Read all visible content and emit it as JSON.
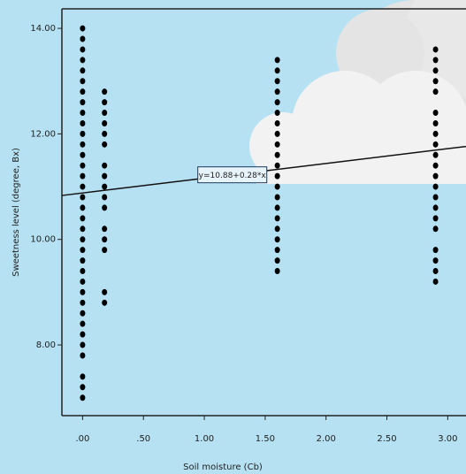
{
  "chart_data": {
    "type": "scatter",
    "x_label": "Soil moisture (Cb)",
    "y_label": "Sweetness level (degree, Bx)",
    "x": [
      0,
      0,
      0,
      0,
      0,
      0,
      0,
      0,
      0,
      0,
      0,
      0,
      0,
      0,
      0,
      0,
      0,
      0,
      0,
      0,
      0,
      0,
      0,
      0,
      0,
      0,
      0,
      0,
      0,
      0,
      0,
      0,
      0,
      0,
      0,
      0.18,
      0.18,
      0.18,
      0.18,
      0.18,
      0.18,
      0.18,
      0.18,
      0.18,
      0.18,
      0.18,
      0.18,
      0.18,
      0.18,
      0.18,
      0.18,
      1.6,
      1.6,
      1.6,
      1.6,
      1.6,
      1.6,
      1.6,
      1.6,
      1.6,
      1.6,
      1.6,
      1.6,
      1.6,
      1.6,
      1.6,
      1.6,
      1.6,
      1.6,
      1.6,
      1.6,
      1.6,
      2.9,
      2.9,
      2.9,
      2.9,
      2.9,
      2.9,
      2.9,
      2.9,
      2.9,
      2.9,
      2.9,
      2.9,
      2.9,
      2.9,
      2.9,
      2.9,
      2.9,
      2.9,
      2.9,
      2.9,
      2.9
    ],
    "values": [
      7.0,
      7.2,
      7.4,
      7.8,
      8.0,
      8.2,
      8.4,
      8.6,
      8.8,
      9.0,
      9.2,
      9.4,
      9.6,
      9.8,
      10.0,
      10.2,
      10.4,
      10.6,
      10.8,
      11.0,
      11.2,
      11.4,
      11.6,
      11.8,
      12.0,
      12.2,
      12.4,
      12.6,
      12.8,
      13.0,
      13.2,
      13.4,
      13.6,
      13.8,
      14.0,
      8.8,
      9.0,
      9.8,
      10.0,
      10.2,
      10.6,
      10.8,
      11.0,
      11.2,
      11.4,
      11.8,
      12.0,
      12.2,
      12.4,
      12.6,
      12.8,
      9.4,
      9.6,
      9.8,
      10.0,
      10.2,
      10.4,
      10.6,
      10.8,
      11.0,
      11.2,
      11.4,
      11.6,
      11.8,
      12.0,
      12.2,
      12.4,
      12.6,
      12.8,
      13.0,
      13.2,
      13.4,
      9.2,
      9.4,
      9.6,
      9.8,
      10.2,
      10.4,
      10.6,
      10.8,
      11.0,
      11.2,
      11.4,
      11.6,
      11.8,
      12.0,
      12.2,
      12.4,
      12.8,
      13.0,
      13.2,
      13.4,
      13.6
    ],
    "color": "#000000",
    "fit": {
      "label": "y=10.88+0.28*x",
      "intercept": 10.88,
      "slope": 0.28
    },
    "xlim": [
      -0.17,
      3.15
    ],
    "ylim": [
      6.66,
      14.37
    ],
    "xticks": [
      {
        "value": 0,
        "label": ".00"
      },
      {
        "value": 0.5,
        "label": ".50"
      },
      {
        "value": 1,
        "label": "1.00"
      },
      {
        "value": 1.5,
        "label": "1.50"
      },
      {
        "value": 2,
        "label": "2.00"
      },
      {
        "value": 2.5,
        "label": "2.50"
      },
      {
        "value": 3,
        "label": "3.00"
      }
    ],
    "yticks": [
      {
        "value": 8,
        "label": "8.00"
      },
      {
        "value": 10,
        "label": "10.00"
      },
      {
        "value": 12,
        "label": "12.00"
      },
      {
        "value": 14,
        "label": "14.00"
      }
    ]
  }
}
